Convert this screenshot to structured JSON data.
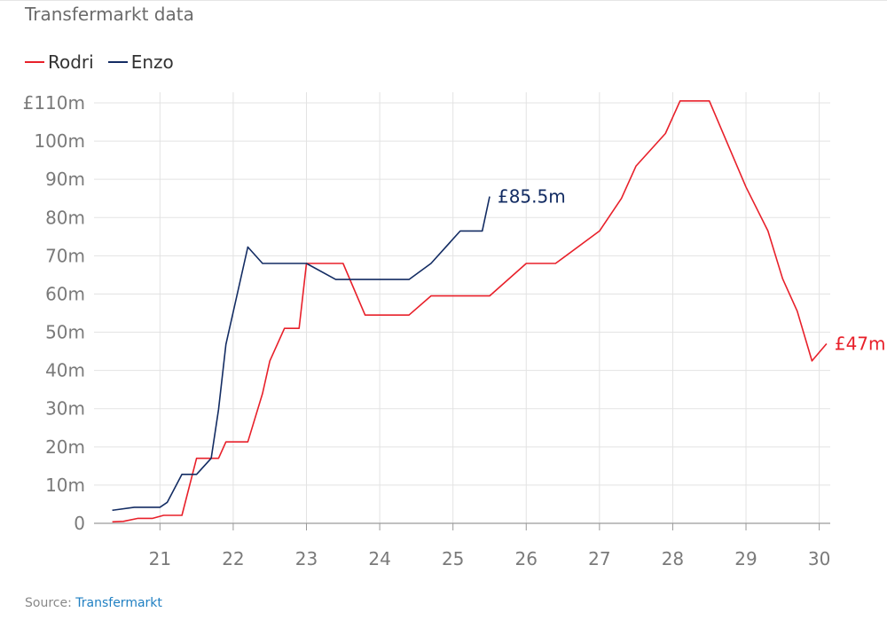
{
  "subtitle": "Transfermarkt data",
  "source": {
    "label": "Source:",
    "link": "Transfermarkt"
  },
  "colors": {
    "rodri": "#e8202a",
    "enzo": "#132c63",
    "grid": "#e3e3e3",
    "axis": "#9a9a9a"
  },
  "chart_data": {
    "type": "line",
    "title": "",
    "xlabel": "",
    "ylabel": "",
    "xlim": [
      20.1,
      30.15
    ],
    "ylim": [
      0,
      110
    ],
    "grid": true,
    "legend": "top-left",
    "x_ticks": [
      21,
      22,
      23,
      24,
      25,
      26,
      27,
      28,
      29,
      30
    ],
    "y_ticks": [
      0,
      10,
      20,
      30,
      40,
      50,
      60,
      70,
      80,
      90,
      100,
      110
    ],
    "y_tick_labels": [
      "0",
      "10m",
      "20m",
      "30m",
      "40m",
      "50m",
      "60m",
      "70m",
      "80m",
      "90m",
      "100m",
      "£110m"
    ],
    "series": [
      {
        "name": "Rodri",
        "color": "#e8202a",
        "end_label": "£47m",
        "points": [
          [
            20.35,
            0.4
          ],
          [
            20.5,
            0.5
          ],
          [
            20.7,
            1.3
          ],
          [
            20.9,
            1.3
          ],
          [
            21.05,
            2.1
          ],
          [
            21.3,
            2.1
          ],
          [
            21.5,
            17
          ],
          [
            21.8,
            17
          ],
          [
            21.9,
            21.3
          ],
          [
            22.2,
            21.3
          ],
          [
            22.4,
            34
          ],
          [
            22.5,
            42.5
          ],
          [
            22.7,
            51
          ],
          [
            22.9,
            51
          ],
          [
            23.0,
            68
          ],
          [
            23.5,
            68
          ],
          [
            23.8,
            54.5
          ],
          [
            24.4,
            54.5
          ],
          [
            24.7,
            59.5
          ],
          [
            25.5,
            59.5
          ],
          [
            26.0,
            68
          ],
          [
            26.4,
            68
          ],
          [
            27.0,
            76.5
          ],
          [
            27.3,
            85
          ],
          [
            27.5,
            93.5
          ],
          [
            27.9,
            102
          ],
          [
            28.1,
            110.5
          ],
          [
            28.5,
            110.5
          ],
          [
            29.0,
            88
          ],
          [
            29.3,
            76.5
          ],
          [
            29.5,
            64
          ],
          [
            29.7,
            55.5
          ],
          [
            29.9,
            42.5
          ],
          [
            30.1,
            47
          ]
        ]
      },
      {
        "name": "Enzo",
        "color": "#132c63",
        "end_label": "£85.5m",
        "points": [
          [
            20.35,
            3.4
          ],
          [
            20.65,
            4.2
          ],
          [
            21.0,
            4.2
          ],
          [
            21.1,
            5.5
          ],
          [
            21.3,
            12.8
          ],
          [
            21.5,
            12.8
          ],
          [
            21.7,
            17
          ],
          [
            21.8,
            29.8
          ],
          [
            21.9,
            46.8
          ],
          [
            22.2,
            72.3
          ],
          [
            22.4,
            68
          ],
          [
            22.8,
            68
          ],
          [
            23.0,
            68
          ],
          [
            23.4,
            63.8
          ],
          [
            24.4,
            63.8
          ],
          [
            24.7,
            68
          ],
          [
            25.1,
            76.5
          ],
          [
            25.4,
            76.5
          ],
          [
            25.5,
            85.5
          ]
        ]
      }
    ]
  }
}
